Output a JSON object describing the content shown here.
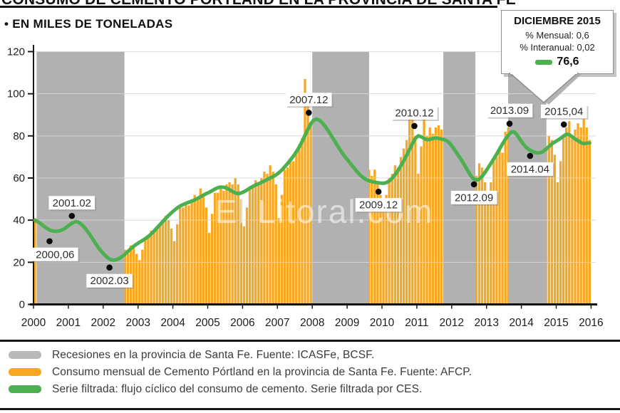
{
  "header": {
    "title": "CONSUMO DE CEMENTO PÓRTLAND EN LA PROVINCIA DE SANTA FE",
    "subtitle": "• EN MILES DE TONELADAS"
  },
  "watermark": "El Litoral.com",
  "callout": {
    "title": "DICIEMBRE 2015",
    "line1": "% Mensual: 0,6",
    "line2": "% Interanual: 0,02",
    "value": "76,6"
  },
  "legend": [
    {
      "color": "#b9b9b9",
      "label": "Recesiones en la provincia de Santa Fe. Fuente: ICASFe, BCSF."
    },
    {
      "color": "#f7a823",
      "label": "Consumo mensual de Cemento Pórtland en la provincia de Santa Fe. Fuente: AFCP."
    },
    {
      "color": "#4cb050",
      "label": "Serie filtrada: flujo cíclico del consumo de cemento. Serie filtrada por CES."
    }
  ],
  "chart_data": {
    "type": "bar+line",
    "title": "Consumo de Cemento Pórtland en la provincia de Santa Fe",
    "ylabel": "miles de toneladas",
    "ylim": [
      0,
      120
    ],
    "yticks": [
      0,
      20,
      40,
      60,
      80,
      100,
      120
    ],
    "xticks": [
      2000,
      2001,
      2002,
      2003,
      2004,
      2005,
      2006,
      2007,
      2008,
      2009,
      2010,
      2011,
      2012,
      2013,
      2014,
      2015,
      2016
    ],
    "x_start": 2000,
    "x_end": 2016,
    "colors": {
      "bars": "#f7a823",
      "line": "#4cb050",
      "recession": "#b1b1b1",
      "grid": "#c2c2c2"
    },
    "bars": {
      "name": "Consumo mensual de Cemento Pórtland (miles de toneladas)",
      "values": [
        41,
        36,
        38,
        37,
        36,
        34,
        36,
        35,
        33,
        36,
        34,
        30,
        26,
        34,
        38,
        37,
        36,
        35,
        34,
        32,
        30,
        29,
        27,
        24,
        16,
        18,
        20,
        19,
        21,
        22,
        24,
        26,
        26,
        28,
        27,
        24,
        21,
        26,
        31,
        33,
        35,
        34,
        36,
        38,
        39,
        42,
        40,
        36,
        30,
        38,
        46,
        46,
        48,
        47,
        50,
        52,
        51,
        55,
        52,
        46,
        34,
        43,
        53,
        53,
        56,
        54,
        57,
        58,
        57,
        60,
        57,
        50,
        37,
        46,
        56,
        56,
        59,
        57,
        60,
        63,
        62,
        66,
        63,
        57,
        41,
        52,
        64,
        65,
        69,
        68,
        72,
        76,
        79,
        107,
        95,
        86,
        55,
        70,
        85,
        84,
        88,
        83,
        85,
        84,
        80,
        82,
        75,
        66,
        45,
        54,
        62,
        61,
        64,
        60,
        62,
        64,
        61,
        64,
        58,
        52,
        44,
        52,
        60,
        62,
        66,
        65,
        70,
        74,
        78,
        90,
        88,
        80,
        62,
        75,
        92,
        80,
        84,
        81,
        84,
        85,
        83,
        87,
        83,
        75,
        45,
        58,
        70,
        67,
        69,
        64,
        66,
        64,
        61,
        67,
        65,
        58,
        48,
        58,
        68,
        70,
        74,
        72,
        82,
        84,
        82,
        88,
        84,
        76,
        55,
        65,
        76,
        74,
        77,
        73,
        76,
        77,
        75,
        80,
        78,
        71,
        58,
        68,
        80,
        84,
        87,
        79,
        83,
        86,
        84,
        88,
        84,
        78
      ]
    },
    "line": {
      "name": "Serie filtrada (flujo cíclico, CES)",
      "values": [
        40.0,
        39.2,
        38.3,
        37.2,
        36.2,
        35.4,
        34.9,
        34.7,
        34.8,
        35.2,
        35.8,
        36.8,
        37.8,
        38.8,
        39.3,
        39.0,
        38.0,
        36.6,
        34.9,
        32.9,
        30.8,
        28.7,
        26.6,
        25.0,
        23.5,
        22.2,
        21.3,
        21.0,
        21.2,
        21.8,
        22.7,
        23.8,
        25.1,
        26.4,
        27.6,
        28.6,
        29.5,
        30.3,
        31.2,
        32.2,
        33.4,
        34.8,
        36.3,
        37.8,
        39.3,
        40.8,
        42.2,
        43.5,
        44.7,
        45.8,
        46.7,
        47.4,
        48.0,
        48.5,
        49.0,
        49.6,
        50.3,
        51.1,
        51.9,
        52.6,
        53.2,
        54.0,
        54.8,
        55.4,
        55.7,
        55.6,
        55.2,
        54.5,
        53.6,
        52.9,
        52.6,
        52.9,
        53.5,
        54.3,
        55.2,
        56.0,
        56.7,
        57.3,
        57.9,
        58.6,
        59.3,
        60.0,
        60.7,
        61.5,
        62.5,
        63.8,
        65.3,
        66.9,
        68.6,
        70.4,
        72.4,
        74.7,
        77.3,
        80.2,
        83.2,
        85.8,
        87.5,
        88.0,
        87.4,
        86.1,
        84.4,
        82.4,
        80.2,
        78.0,
        75.8,
        73.6,
        71.5,
        69.7,
        68.0,
        66.3,
        64.6,
        62.9,
        61.4,
        60.2,
        59.3,
        58.7,
        58.3,
        58.0,
        57.8,
        57.6,
        57.5,
        57.8,
        58.6,
        59.9,
        61.6,
        63.6,
        65.8,
        68.2,
        70.8,
        73.6,
        76.4,
        78.8,
        80.0,
        79.6,
        78.8,
        78.2,
        78.3,
        78.8,
        79.0,
        78.8,
        78.5,
        78.2,
        77.5,
        76.2,
        74.4,
        72.4,
        70.3,
        68.2,
        66.0,
        63.6,
        61.3,
        59.6,
        59.0,
        59.5,
        60.8,
        62.7,
        64.8,
        66.9,
        69.1,
        71.4,
        73.8,
        76.2,
        78.4,
        80.3,
        81.8,
        81.9,
        80.5,
        78.4,
        76.4,
        74.8,
        73.6,
        72.8,
        72.2,
        71.9,
        72.0,
        72.6,
        73.7,
        75.0,
        76.2,
        77.1,
        77.9,
        78.8,
        79.9,
        80.8,
        80.6,
        79.6,
        78.5,
        77.7,
        76.8,
        76.3,
        76.6,
        76.6
      ]
    },
    "recessions": [
      {
        "from": 2000.09,
        "to": 2002.61
      },
      {
        "from": 2008.0,
        "to": 2009.63
      },
      {
        "from": 2011.76,
        "to": 2012.68
      },
      {
        "from": 2013.62,
        "to": 2014.72
      }
    ],
    "annotations": [
      {
        "label": "2000,06",
        "x": 2000.46,
        "y": 30.0,
        "label_side": "below"
      },
      {
        "label": "2001.02",
        "x": 2001.1,
        "y": 42.0,
        "label_side": "above"
      },
      {
        "label": "2002.03",
        "x": 2002.18,
        "y": 17.5,
        "label_side": "below"
      },
      {
        "label": "2007.12",
        "x": 2007.9,
        "y": 91.0,
        "label_side": "above"
      },
      {
        "label": "2009.12",
        "x": 2009.9,
        "y": 53.5,
        "label_side": "below"
      },
      {
        "label": "2010.12",
        "x": 2010.93,
        "y": 84.7,
        "label_side": "above"
      },
      {
        "label": "2012.09",
        "x": 2012.64,
        "y": 57.0,
        "label_side": "below"
      },
      {
        "label": "2013.09",
        "x": 2013.66,
        "y": 85.8,
        "label_side": "above"
      },
      {
        "label": "2014.04",
        "x": 2014.25,
        "y": 70.5,
        "label_side": "below"
      },
      {
        "label": "2015,04",
        "x": 2015.22,
        "y": 85.4,
        "label_side": "above"
      }
    ]
  }
}
